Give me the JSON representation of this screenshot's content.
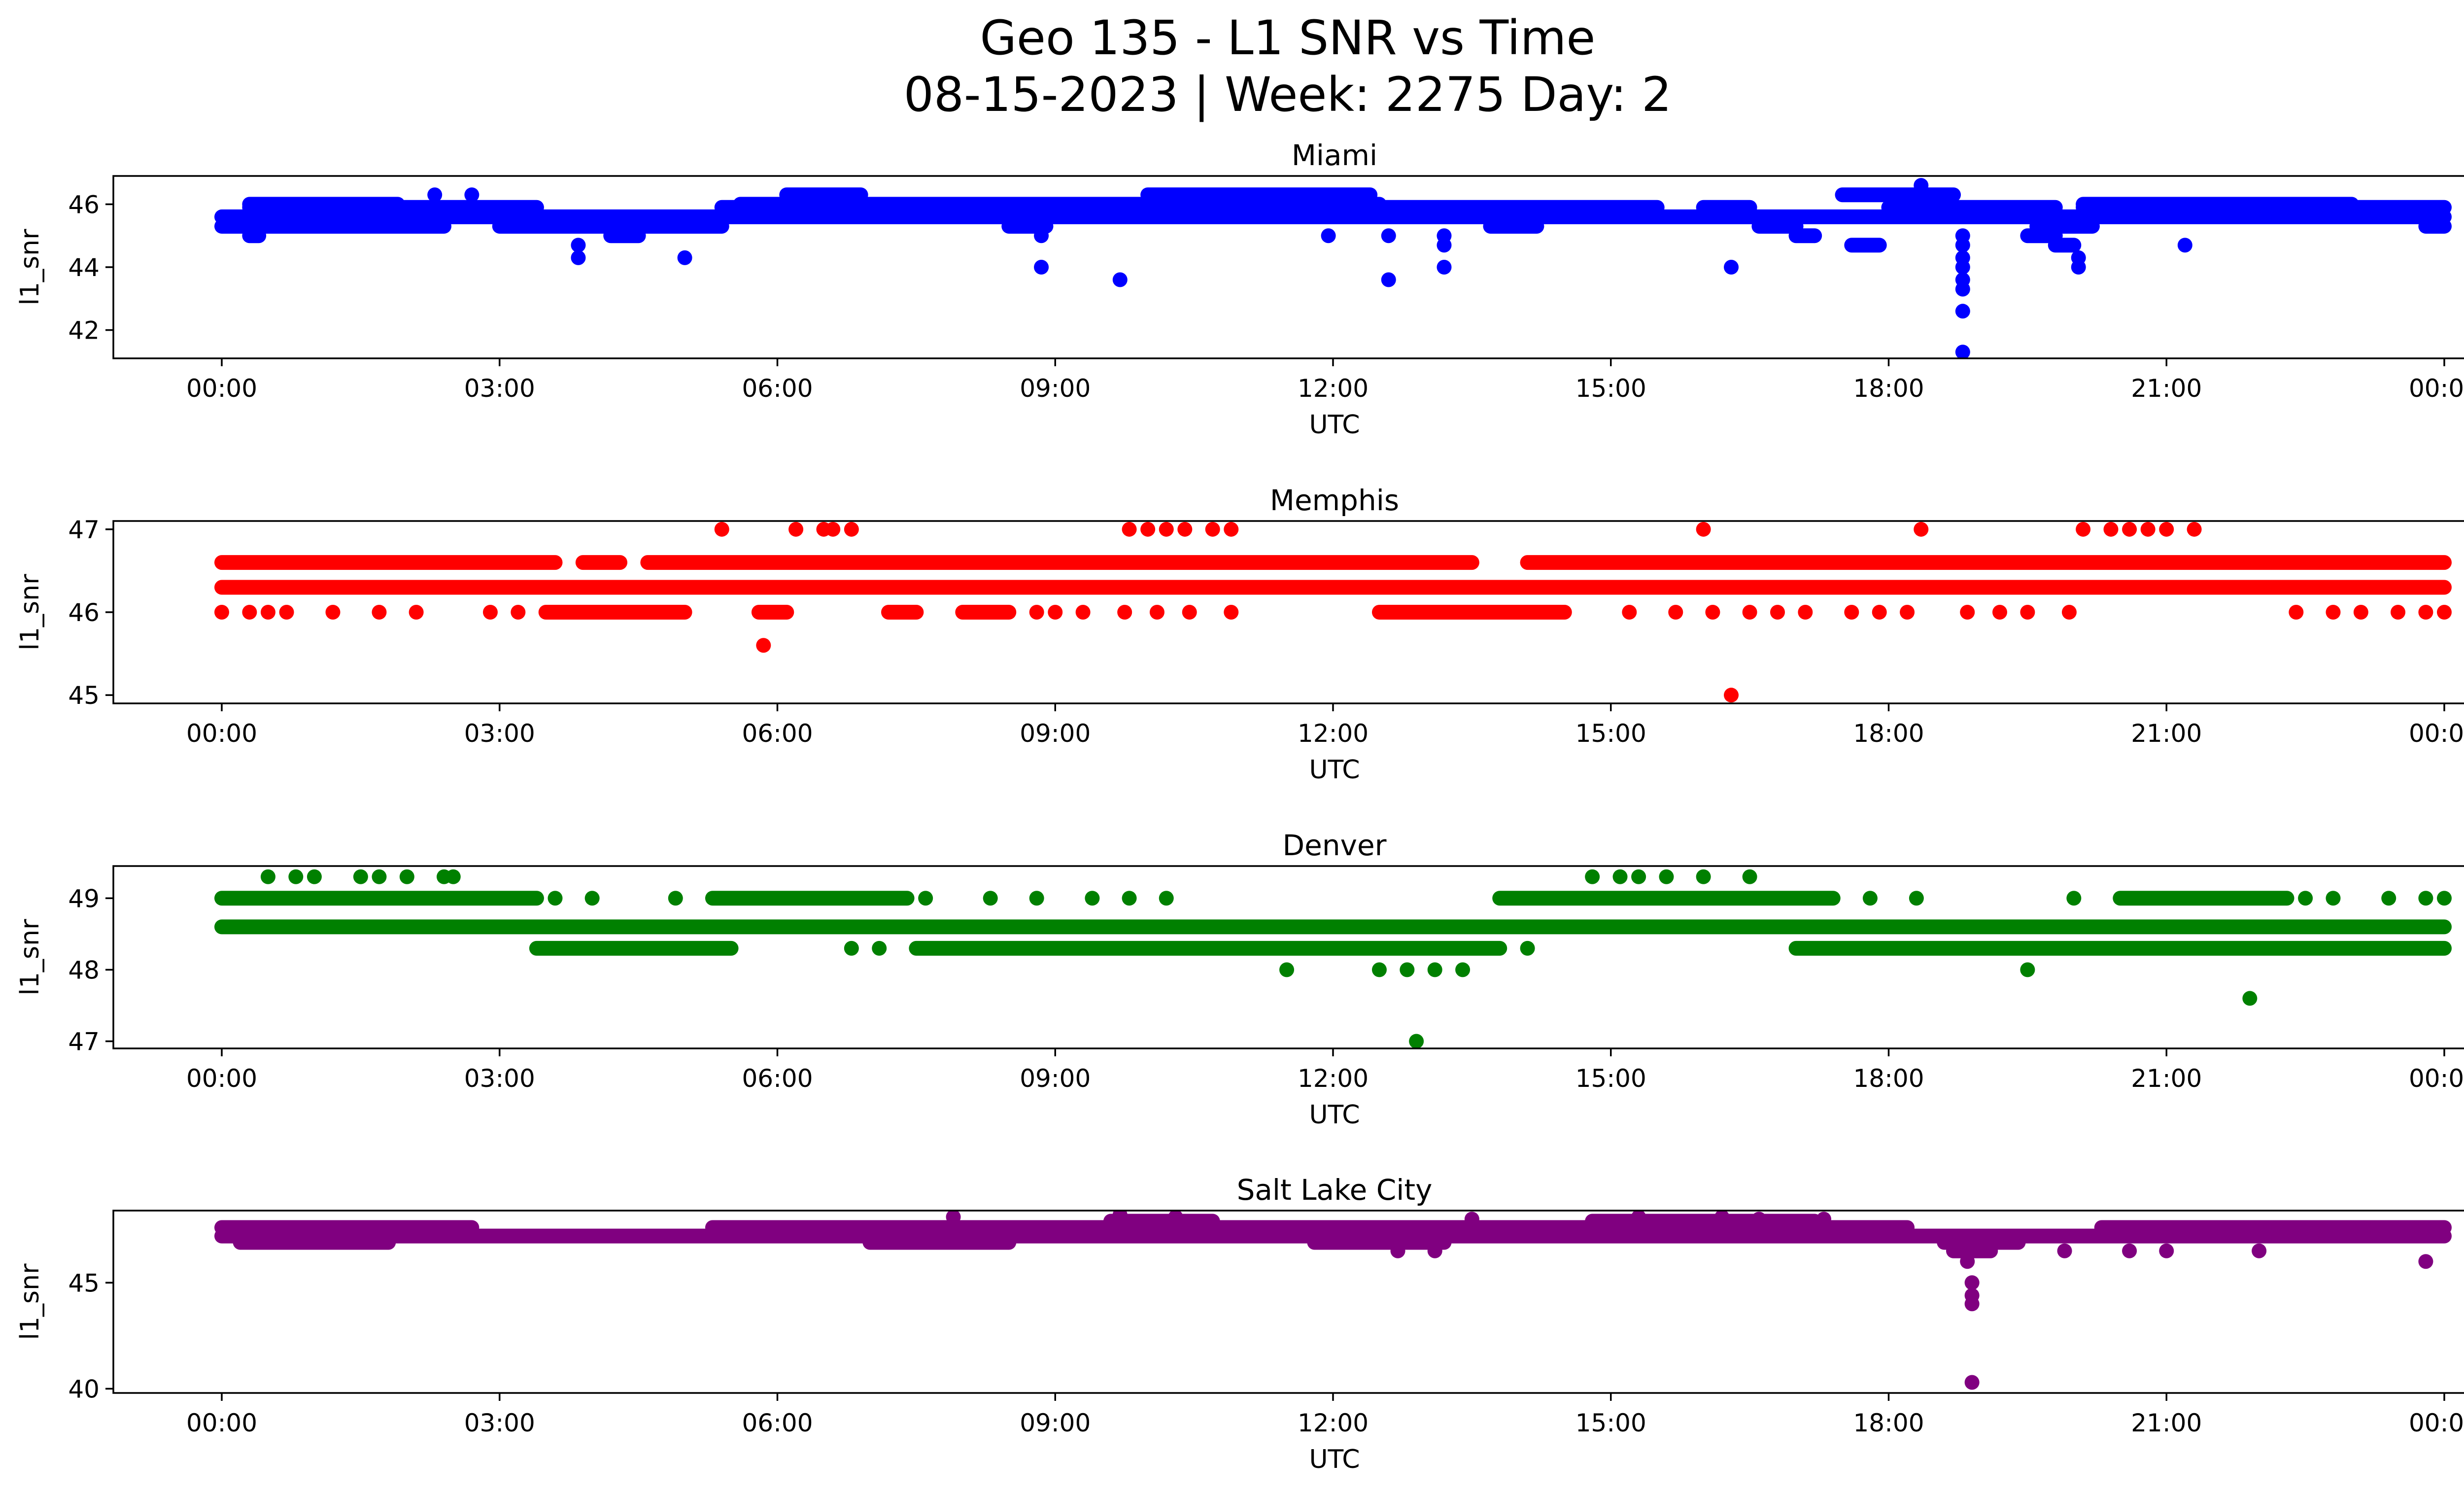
{
  "figure": {
    "title_line1": "Geo 135 - L1 SNR vs Time",
    "title_line2": "08-15-2023 | Week: 2275 Day: 2"
  },
  "chart_data": [
    {
      "type": "scatter",
      "title": "Miami",
      "xlabel": "UTC",
      "ylabel": "l1_snr",
      "color": "#0000ff",
      "xlim": [
        "23:35",
        "24:24"
      ],
      "ylim": [
        41.1,
        46.9
      ],
      "x_ticks": [
        "00:00",
        "03:00",
        "06:00",
        "09:00",
        "12:00",
        "15:00",
        "18:00",
        "21:00",
        "00:00"
      ],
      "y_ticks": [
        42,
        44,
        46
      ],
      "bands": [
        {
          "y": 45.6,
          "segments": [
            [
              0.0,
              24.0
            ]
          ]
        },
        {
          "y": 45.3,
          "segments": [
            [
              0.0,
              2.4
            ],
            [
              3.0,
              5.4
            ],
            [
              8.5,
              8.9
            ],
            [
              13.7,
              14.2
            ],
            [
              16.6,
              17.0
            ],
            [
              19.6,
              20.2
            ],
            [
              23.8,
              24.0
            ]
          ]
        },
        {
          "y": 45.9,
          "segments": [
            [
              0.3,
              3.4
            ],
            [
              5.4,
              15.5
            ],
            [
              16.0,
              16.5
            ],
            [
              18.0,
              19.8
            ],
            [
              20.1,
              24.0
            ]
          ]
        },
        {
          "y": 46.0,
          "segments": [
            [
              0.3,
              1.9
            ],
            [
              5.6,
              12.5
            ],
            [
              20.1,
              23.0
            ]
          ]
        },
        {
          "y": 46.3,
          "segments": [
            [
              6.1,
              6.9
            ],
            [
              10.0,
              12.4
            ],
            [
              17.5,
              18.7
            ]
          ]
        },
        {
          "y": 45.0,
          "segments": [
            [
              0.3,
              0.4
            ],
            [
              4.2,
              4.5
            ],
            [
              17.0,
              17.2
            ],
            [
              19.5,
              19.8
            ]
          ]
        },
        {
          "y": 44.7,
          "segments": [
            [
              17.6,
              17.9
            ],
            [
              19.8,
              20.0
            ]
          ]
        }
      ],
      "points": [
        [
          2.3,
          46.3
        ],
        [
          2.7,
          46.3
        ],
        [
          3.85,
          44.3
        ],
        [
          3.85,
          44.7
        ],
        [
          5.0,
          44.3
        ],
        [
          8.85,
          45.0
        ],
        [
          8.85,
          44.0
        ],
        [
          9.7,
          43.6
        ],
        [
          11.95,
          45.0
        ],
        [
          12.6,
          45.0
        ],
        [
          12.6,
          43.6
        ],
        [
          13.2,
          44.0
        ],
        [
          13.2,
          44.7
        ],
        [
          13.2,
          45.0
        ],
        [
          16.3,
          44.0
        ],
        [
          18.35,
          46.6
        ],
        [
          18.8,
          45.0
        ],
        [
          18.8,
          44.7
        ],
        [
          18.8,
          44.3
        ],
        [
          18.8,
          44.0
        ],
        [
          18.8,
          43.6
        ],
        [
          18.8,
          43.3
        ],
        [
          18.8,
          42.6
        ],
        [
          18.8,
          41.3
        ],
        [
          20.05,
          44.0
        ],
        [
          20.05,
          44.3
        ],
        [
          21.2,
          44.7
        ]
      ]
    },
    {
      "type": "scatter",
      "title": "Memphis",
      "xlabel": "UTC",
      "ylabel": "l1_snr",
      "color": "#ff0000",
      "xlim": [
        "23:35",
        "24:24"
      ],
      "ylim": [
        44.9,
        47.1
      ],
      "x_ticks": [
        "00:00",
        "03:00",
        "06:00",
        "09:00",
        "12:00",
        "15:00",
        "18:00",
        "21:00",
        "00:00"
      ],
      "y_ticks": [
        45,
        46,
        47
      ],
      "bands": [
        {
          "y": 46.3,
          "segments": [
            [
              0.0,
              24.0
            ]
          ]
        },
        {
          "y": 46.6,
          "segments": [
            [
              0.0,
              3.6
            ],
            [
              3.9,
              4.3
            ],
            [
              4.6,
              13.5
            ],
            [
              14.1,
              24.0
            ]
          ]
        },
        {
          "y": 46.0,
          "segments": [
            [
              3.5,
              5.0
            ],
            [
              5.8,
              6.1
            ],
            [
              7.2,
              7.5
            ],
            [
              8.0,
              8.5
            ],
            [
              12.5,
              14.5
            ]
          ]
        }
      ],
      "points": [
        [
          0.0,
          46.0
        ],
        [
          0.3,
          46.0
        ],
        [
          0.5,
          46.0
        ],
        [
          0.7,
          46.0
        ],
        [
          1.2,
          46.0
        ],
        [
          1.7,
          46.0
        ],
        [
          2.1,
          46.0
        ],
        [
          2.9,
          46.0
        ],
        [
          3.2,
          46.0
        ],
        [
          8.8,
          46.0
        ],
        [
          9.0,
          46.0
        ],
        [
          9.3,
          46.0
        ],
        [
          9.75,
          46.0
        ],
        [
          10.1,
          46.0
        ],
        [
          10.45,
          46.0
        ],
        [
          10.9,
          46.0
        ],
        [
          15.2,
          46.0
        ],
        [
          15.7,
          46.0
        ],
        [
          16.1,
          46.0
        ],
        [
          16.5,
          46.0
        ],
        [
          16.8,
          46.0
        ],
        [
          17.1,
          46.0
        ],
        [
          17.6,
          46.0
        ],
        [
          17.9,
          46.0
        ],
        [
          18.2,
          46.0
        ],
        [
          18.85,
          46.0
        ],
        [
          19.2,
          46.0
        ],
        [
          19.5,
          46.0
        ],
        [
          19.95,
          46.0
        ],
        [
          22.4,
          46.0
        ],
        [
          22.8,
          46.0
        ],
        [
          23.1,
          46.0
        ],
        [
          23.5,
          46.0
        ],
        [
          23.8,
          46.0
        ],
        [
          24.0,
          46.0
        ],
        [
          5.4,
          47.0
        ],
        [
          6.2,
          47.0
        ],
        [
          6.5,
          47.0
        ],
        [
          6.6,
          47.0
        ],
        [
          6.8,
          47.0
        ],
        [
          9.8,
          47.0
        ],
        [
          10.0,
          47.0
        ],
        [
          10.2,
          47.0
        ],
        [
          10.4,
          47.0
        ],
        [
          10.7,
          47.0
        ],
        [
          10.9,
          47.0
        ],
        [
          16.0,
          47.0
        ],
        [
          18.35,
          47.0
        ],
        [
          20.1,
          47.0
        ],
        [
          20.4,
          47.0
        ],
        [
          20.6,
          47.0
        ],
        [
          20.8,
          47.0
        ],
        [
          21.0,
          47.0
        ],
        [
          21.3,
          47.0
        ],
        [
          5.85,
          45.6
        ],
        [
          16.3,
          45.0
        ]
      ]
    },
    {
      "type": "scatter",
      "title": "Denver",
      "xlabel": "UTC",
      "ylabel": "l1_snr",
      "color": "#008000",
      "xlim": [
        "23:35",
        "24:24"
      ],
      "ylim": [
        46.9,
        49.45
      ],
      "x_ticks": [
        "00:00",
        "03:00",
        "06:00",
        "09:00",
        "12:00",
        "15:00",
        "18:00",
        "21:00",
        "00:00"
      ],
      "y_ticks": [
        47,
        48,
        49
      ],
      "bands": [
        {
          "y": 48.6,
          "segments": [
            [
              0.0,
              24.0
            ]
          ]
        },
        {
          "y": 49.0,
          "segments": [
            [
              0.0,
              3.4
            ],
            [
              5.3,
              7.4
            ],
            [
              13.8,
              17.4
            ],
            [
              20.5,
              22.3
            ]
          ]
        },
        {
          "y": 48.3,
          "segments": [
            [
              3.4,
              5.5
            ],
            [
              7.5,
              13.8
            ],
            [
              17.0,
              24.0
            ]
          ]
        }
      ],
      "points": [
        [
          0.5,
          49.3
        ],
        [
          0.8,
          49.3
        ],
        [
          1.0,
          49.3
        ],
        [
          1.5,
          49.3
        ],
        [
          1.7,
          49.3
        ],
        [
          2.0,
          49.3
        ],
        [
          2.4,
          49.3
        ],
        [
          2.5,
          49.3
        ],
        [
          14.8,
          49.3
        ],
        [
          15.1,
          49.3
        ],
        [
          15.3,
          49.3
        ],
        [
          15.6,
          49.3
        ],
        [
          16.0,
          49.3
        ],
        [
          16.5,
          49.3
        ],
        [
          3.6,
          49.0
        ],
        [
          4.0,
          49.0
        ],
        [
          4.9,
          49.0
        ],
        [
          7.6,
          49.0
        ],
        [
          8.3,
          49.0
        ],
        [
          8.8,
          49.0
        ],
        [
          9.4,
          49.0
        ],
        [
          9.8,
          49.0
        ],
        [
          10.2,
          49.0
        ],
        [
          17.8,
          49.0
        ],
        [
          18.3,
          49.0
        ],
        [
          20.0,
          49.0
        ],
        [
          22.5,
          49.0
        ],
        [
          22.8,
          49.0
        ],
        [
          23.4,
          49.0
        ],
        [
          23.8,
          49.0
        ],
        [
          24.0,
          49.0
        ],
        [
          14.1,
          48.3
        ],
        [
          6.8,
          48.3
        ],
        [
          7.1,
          48.3
        ],
        [
          11.5,
          48.0
        ],
        [
          12.5,
          48.0
        ],
        [
          12.8,
          48.0
        ],
        [
          13.1,
          48.0
        ],
        [
          13.4,
          48.0
        ],
        [
          19.5,
          48.0
        ],
        [
          21.9,
          47.6
        ],
        [
          12.9,
          47.0
        ]
      ]
    },
    {
      "type": "scatter",
      "title": "Salt Lake City",
      "xlabel": "UTC",
      "ylabel": "l1_snr",
      "color": "#800080",
      "xlim": [
        "23:35",
        "24:24"
      ],
      "ylim": [
        39.8,
        48.4
      ],
      "x_ticks": [
        "00:00",
        "03:00",
        "06:00",
        "09:00",
        "12:00",
        "15:00",
        "18:00",
        "21:00",
        "00:00"
      ],
      "y_ticks": [
        40,
        45
      ],
      "bands": [
        {
          "y": 47.2,
          "segments": [
            [
              0.0,
              24.0
            ]
          ]
        },
        {
          "y": 47.6,
          "segments": [
            [
              0.0,
              2.7
            ],
            [
              5.3,
              18.2
            ],
            [
              20.3,
              24.0
            ]
          ]
        },
        {
          "y": 46.9,
          "segments": [
            [
              0.2,
              1.8
            ],
            [
              7.0,
              8.5
            ],
            [
              11.8,
              13.2
            ],
            [
              18.6,
              19.4
            ]
          ]
        },
        {
          "y": 47.9,
          "segments": [
            [
              9.6,
              10.7
            ],
            [
              14.8,
              17.2
            ]
          ]
        },
        {
          "y": 46.5,
          "segments": [
            [
              18.7,
              19.1
            ]
          ]
        }
      ],
      "points": [
        [
          0.6,
          46.9
        ],
        [
          1.2,
          46.9
        ],
        [
          12.7,
          46.5
        ],
        [
          13.1,
          46.5
        ],
        [
          19.9,
          46.5
        ],
        [
          20.6,
          46.5
        ],
        [
          21.0,
          46.5
        ],
        [
          22.0,
          46.5
        ],
        [
          23.8,
          46.0
        ],
        [
          18.85,
          46.0
        ],
        [
          18.9,
          45.0
        ],
        [
          18.9,
          44.4
        ],
        [
          18.9,
          44.0
        ],
        [
          18.9,
          40.3
        ],
        [
          7.9,
          48.1
        ],
        [
          9.7,
          48.2
        ],
        [
          10.3,
          48.1
        ],
        [
          13.5,
          48.0
        ],
        [
          15.3,
          48.1
        ],
        [
          16.2,
          48.1
        ],
        [
          16.6,
          48.0
        ],
        [
          17.3,
          48.0
        ]
      ]
    }
  ]
}
